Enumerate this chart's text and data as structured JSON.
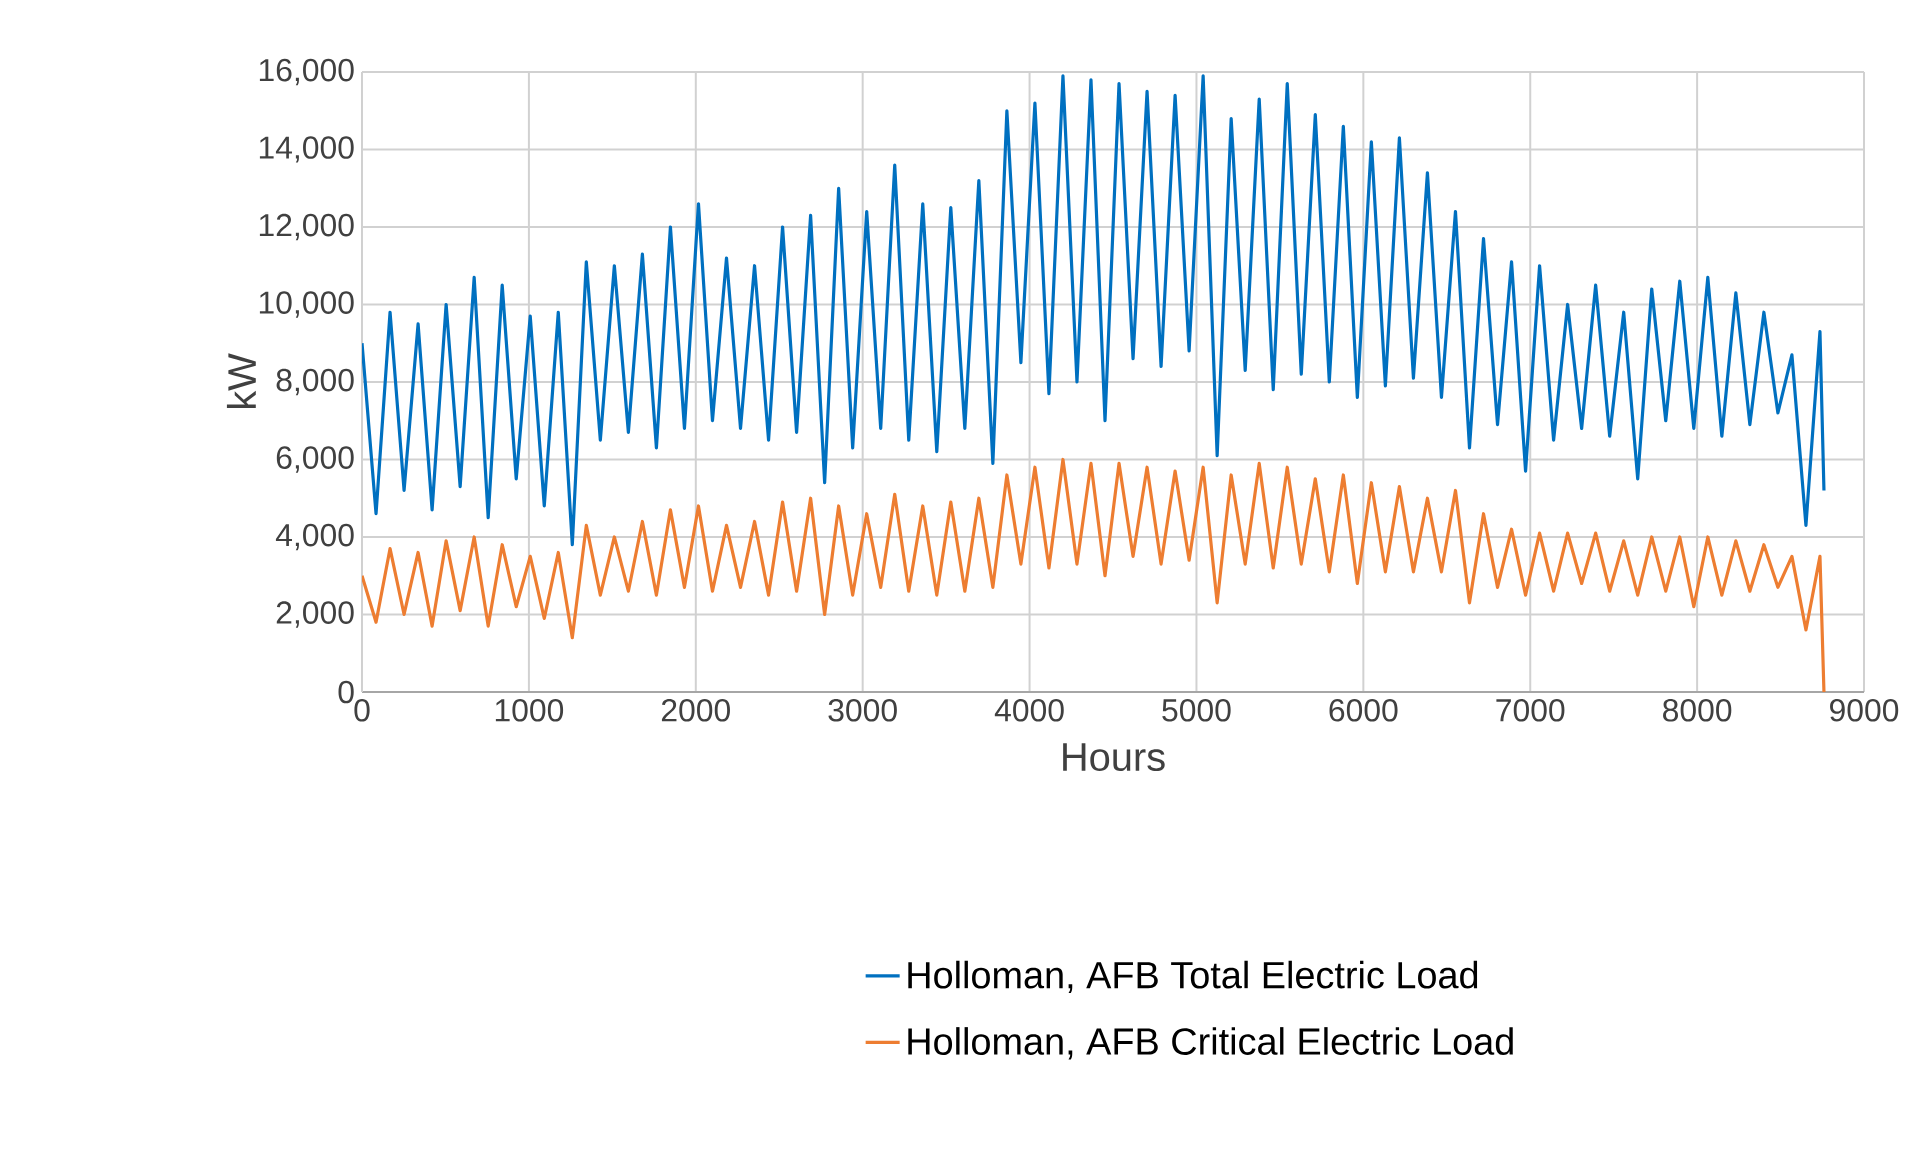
{
  "chart_data": {
    "type": "line",
    "xlabel": "Hours",
    "ylabel": "kW",
    "xlim": [
      0,
      9000
    ],
    "xticks": [
      0,
      1000,
      2000,
      3000,
      4000,
      5000,
      6000,
      7000,
      8000,
      9000
    ],
    "ylim": [
      0,
      16000
    ],
    "yticks": [
      {
        "value": 0,
        "label": "0"
      },
      {
        "value": 2000,
        "label": "2,000"
      },
      {
        "value": 4000,
        "label": "4,000"
      },
      {
        "value": 6000,
        "label": "6,000"
      },
      {
        "value": 8000,
        "label": "8,000"
      },
      {
        "value": 10000,
        "label": "10,000"
      },
      {
        "value": 12000,
        "label": "12,000"
      },
      {
        "value": 14000,
        "label": "14,000"
      },
      {
        "value": 16000,
        "label": "16,000"
      }
    ],
    "grid": true,
    "legend": "bottom",
    "marker": "none",
    "line_style": "solid",
    "x": [
      0,
      84,
      168,
      252,
      336,
      420,
      504,
      588,
      672,
      756,
      840,
      924,
      1008,
      1092,
      1176,
      1260,
      1344,
      1428,
      1512,
      1596,
      1680,
      1764,
      1848,
      1932,
      2016,
      2100,
      2184,
      2268,
      2352,
      2436,
      2520,
      2604,
      2688,
      2772,
      2856,
      2940,
      3024,
      3108,
      3192,
      3276,
      3360,
      3444,
      3528,
      3612,
      3696,
      3780,
      3864,
      3948,
      4032,
      4116,
      4200,
      4284,
      4368,
      4452,
      4536,
      4620,
      4704,
      4788,
      4872,
      4956,
      5040,
      5124,
      5208,
      5292,
      5376,
      5460,
      5544,
      5628,
      5712,
      5796,
      5880,
      5964,
      6048,
      6132,
      6216,
      6300,
      6384,
      6468,
      6552,
      6636,
      6720,
      6804,
      6888,
      6972,
      7056,
      7140,
      7224,
      7308,
      7392,
      7476,
      7560,
      7644,
      7728,
      7812,
      7896,
      7980,
      8064,
      8148,
      8232,
      8316,
      8400,
      8484,
      8568,
      8652,
      8736,
      8760
    ],
    "series": [
      {
        "name": "Holloman, AFB Total Electric Load",
        "color": "#0070c0",
        "values": [
          9000,
          4600,
          9800,
          5200,
          9500,
          4700,
          10000,
          5300,
          10700,
          4500,
          10500,
          5500,
          9700,
          4800,
          9800,
          3800,
          11100,
          6500,
          11000,
          6700,
          11300,
          6300,
          12000,
          6800,
          12600,
          7000,
          11200,
          6800,
          11000,
          6500,
          12000,
          6700,
          12300,
          5400,
          13000,
          6300,
          12400,
          6800,
          13600,
          6500,
          12600,
          6200,
          12500,
          6800,
          13200,
          5900,
          15000,
          8500,
          15200,
          7700,
          15900,
          8000,
          15800,
          7000,
          15700,
          8600,
          15500,
          8400,
          15400,
          8800,
          15900,
          6100,
          14800,
          8300,
          15300,
          7800,
          15700,
          8200,
          14900,
          8000,
          14600,
          7600,
          14200,
          7900,
          14300,
          8100,
          13400,
          7600,
          12400,
          6300,
          11700,
          6900,
          11100,
          5700,
          11000,
          6500,
          10000,
          6800,
          10500,
          6600,
          9800,
          5500,
          10400,
          7000,
          10600,
          6800,
          10700,
          6600,
          10300,
          6900,
          9800,
          7200,
          8700,
          4300,
          9300,
          5200
        ]
      },
      {
        "name": "Holloman, AFB Critical Electric Load",
        "color": "#ed7d31",
        "values": [
          3000,
          1800,
          3700,
          2000,
          3600,
          1700,
          3900,
          2100,
          4000,
          1700,
          3800,
          2200,
          3500,
          1900,
          3600,
          1400,
          4300,
          2500,
          4000,
          2600,
          4400,
          2500,
          4700,
          2700,
          4800,
          2600,
          4300,
          2700,
          4400,
          2500,
          4900,
          2600,
          5000,
          2000,
          4800,
          2500,
          4600,
          2700,
          5100,
          2600,
          4800,
          2500,
          4900,
          2600,
          5000,
          2700,
          5600,
          3300,
          5800,
          3200,
          6000,
          3300,
          5900,
          3000,
          5900,
          3500,
          5800,
          3300,
          5700,
          3400,
          5800,
          2300,
          5600,
          3300,
          5900,
          3200,
          5800,
          3300,
          5500,
          3100,
          5600,
          2800,
          5400,
          3100,
          5300,
          3100,
          5000,
          3100,
          5200,
          2300,
          4600,
          2700,
          4200,
          2500,
          4100,
          2600,
          4100,
          2800,
          4100,
          2600,
          3900,
          2500,
          4000,
          2600,
          4000,
          2200,
          4000,
          2500,
          3900,
          2600,
          3800,
          2700,
          3500,
          1600,
          3500,
          0
        ]
      }
    ]
  }
}
